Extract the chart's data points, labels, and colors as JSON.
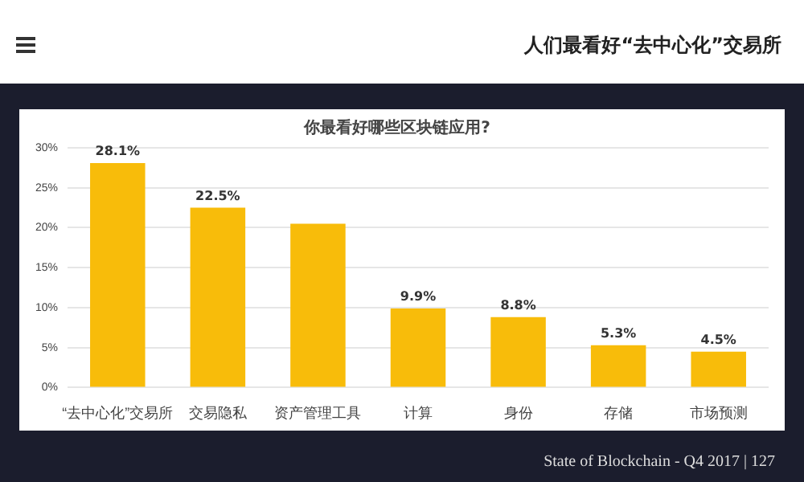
{
  "chart_data": {
    "type": "bar",
    "title": "你最看好哪些区块链应用?",
    "categories": [
      "“去中心化”交易所",
      "交易隐私",
      "资产管理工具",
      "计算",
      "身份",
      "存储",
      "市场预测"
    ],
    "values": [
      28.1,
      22.5,
      20.5,
      9.9,
      8.8,
      5.3,
      4.5
    ],
    "value_labels": [
      "28.1%",
      "22.5%",
      null,
      "9.9%",
      "8.8%",
      "5.3%",
      "4.5%"
    ],
    "color": "#f8bc0a",
    "ylim": [
      0,
      30
    ],
    "yticks": [
      {
        "value": 0,
        "label": "0%"
      },
      {
        "value": 5,
        "label": "5%"
      },
      {
        "value": 10,
        "label": "10%"
      },
      {
        "value": 15,
        "label": "15%"
      },
      {
        "value": 20,
        "label": "20%"
      },
      {
        "value": 25,
        "label": "25%"
      },
      {
        "value": 30,
        "label": "30%"
      }
    ],
    "grid": "y",
    "annotations": [
      "人们最看好“去中心化”交易所",
      "State of Blockchain - Q4 2017 | 127"
    ]
  }
}
